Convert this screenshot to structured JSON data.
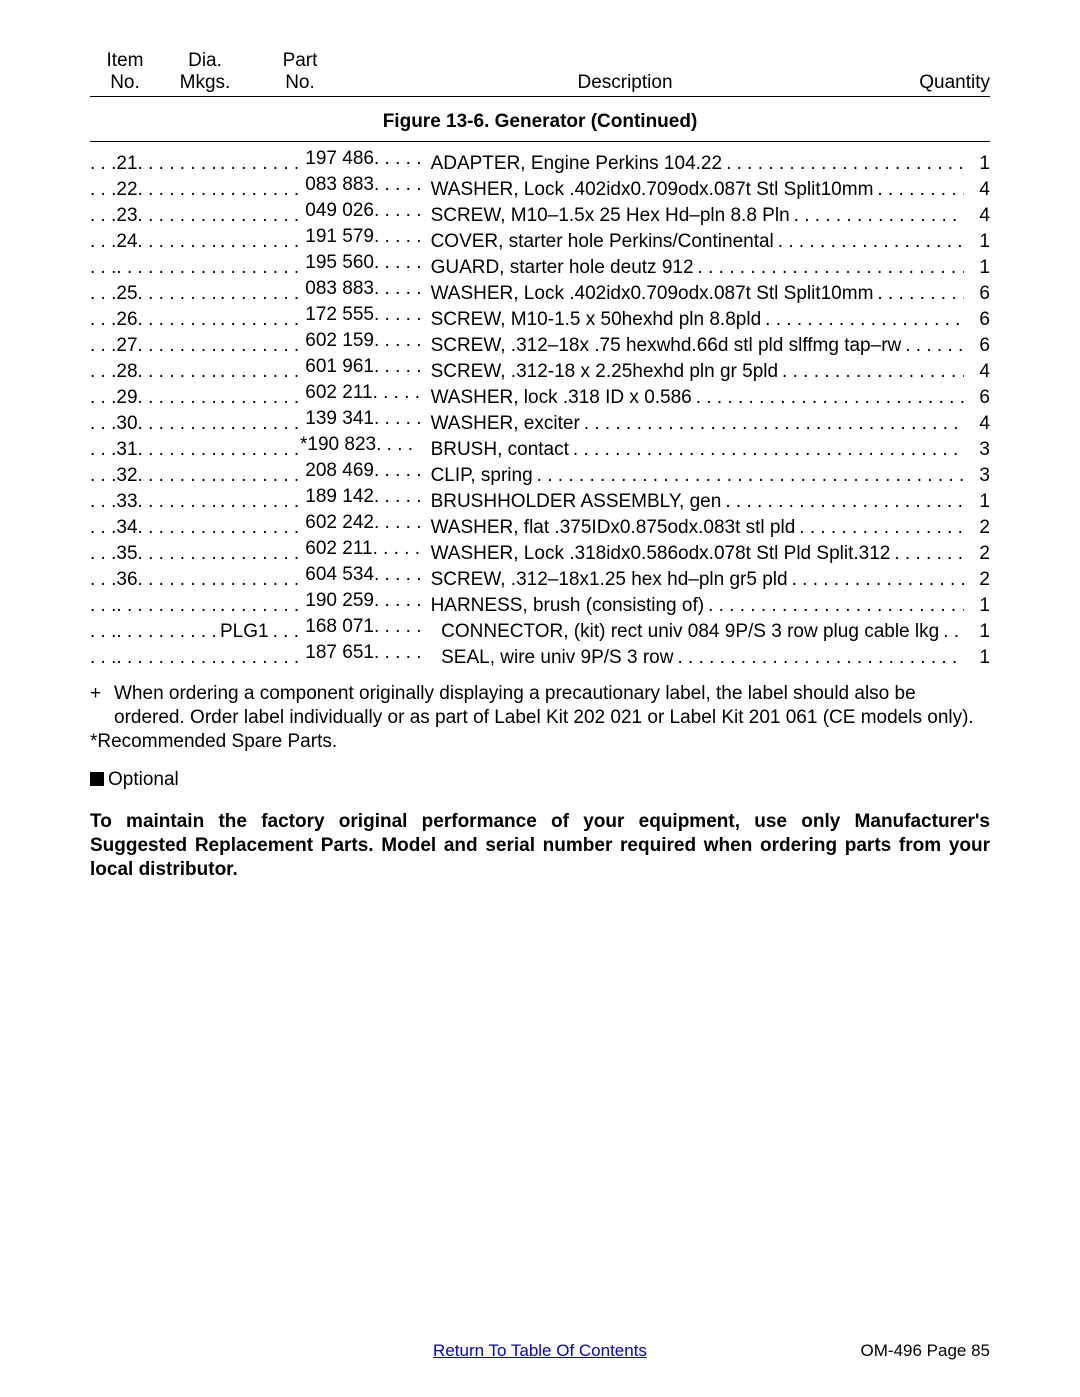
{
  "header": {
    "item_top": "Item",
    "item_bot": "No.",
    "dia_top": "Dia.",
    "dia_bot": "Mkgs.",
    "part_top": "Part",
    "part_bot": "No.",
    "desc": "Description",
    "qty": "Quantity"
  },
  "figure_title": "Figure 13-6. Generator (Continued)",
  "rows": [
    {
      "item": "21",
      "dia": "",
      "star": "",
      "part": "197 486",
      "indent": "",
      "desc": "ADAPTER, Engine Perkins 104.22",
      "qty": "1"
    },
    {
      "item": "22",
      "dia": "",
      "star": "",
      "part": "083 883",
      "indent": "",
      "desc": "WASHER, Lock .402idx0.709odx.087t Stl Split10mm",
      "qty": "4"
    },
    {
      "item": "23",
      "dia": "",
      "star": "",
      "part": "049 026",
      "indent": "",
      "desc": "SCREW, M10–1.5x 25 Hex Hd–pln 8.8 Pln",
      "qty": "4"
    },
    {
      "item": "24",
      "dia": "",
      "star": "",
      "part": "191 579",
      "indent": "",
      "desc": "COVER, starter hole Perkins/Continental",
      "qty": "1"
    },
    {
      "item": "",
      "dia": "",
      "star": "",
      "part": "195 560",
      "indent": "",
      "desc": "GUARD, starter hole deutz 912",
      "qty": "1"
    },
    {
      "item": "25",
      "dia": "",
      "star": "",
      "part": "083 883",
      "indent": "",
      "desc": "WASHER, Lock .402idx0.709odx.087t Stl Split10mm",
      "qty": "6"
    },
    {
      "item": "26",
      "dia": "",
      "star": "",
      "part": "172 555",
      "indent": "",
      "desc": "SCREW, M10-1.5 x 50hexhd pln 8.8pld",
      "qty": "6"
    },
    {
      "item": "27",
      "dia": "",
      "star": "",
      "part": "602 159",
      "indent": "",
      "desc": "SCREW, .312–18x .75 hexwhd.66d stl pld slffmg tap–rw",
      "qty": "6"
    },
    {
      "item": "28",
      "dia": "",
      "star": "",
      "part": "601 961",
      "indent": "",
      "desc": "SCREW, .312-18 x 2.25hexhd pln gr 5pld",
      "qty": "4"
    },
    {
      "item": "29",
      "dia": "",
      "star": "",
      "part": "602 211",
      "indent": "",
      "desc": "WASHER, lock .318 ID x 0.586",
      "qty": "6"
    },
    {
      "item": "30",
      "dia": "",
      "star": "",
      "part": "139 341",
      "indent": "",
      "desc": "WASHER, exciter",
      "qty": "4"
    },
    {
      "item": "31",
      "dia": "",
      "star": "*",
      "part": "190 823",
      "indent": "",
      "desc": "BRUSH, contact",
      "qty": "3"
    },
    {
      "item": "32",
      "dia": "",
      "star": "",
      "part": "208 469",
      "indent": "",
      "desc": "CLIP, spring",
      "qty": "3"
    },
    {
      "item": "33",
      "dia": "",
      "star": "",
      "part": "189 142",
      "indent": "",
      "desc": "BRUSHHOLDER ASSEMBLY, gen",
      "qty": "1"
    },
    {
      "item": "34",
      "dia": "",
      "star": "",
      "part": "602 242",
      "indent": "",
      "desc": "WASHER, flat .375IDx0.875odx.083t stl pld",
      "qty": "2"
    },
    {
      "item": "35",
      "dia": "",
      "star": "",
      "part": "602 211",
      "indent": "",
      "desc": "WASHER, Lock .318idx0.586odx.078t Stl Pld Split.312",
      "qty": "2"
    },
    {
      "item": "36",
      "dia": "",
      "star": "",
      "part": "604 534",
      "indent": "",
      "desc": "SCREW, .312–18x1.25 hex hd–pln gr5 pld",
      "qty": "2"
    },
    {
      "item": "",
      "dia": "",
      "star": "",
      "part": "190 259",
      "indent": "",
      "desc": "HARNESS, brush (consisting of)",
      "qty": "1"
    },
    {
      "item": "",
      "dia": "PLG1",
      "star": "",
      "part": "168 071",
      "indent": "  ",
      "desc": "CONNECTOR, (kit) rect univ 084 9P/S 3 row plug cable lkg",
      "qty": "1"
    },
    {
      "item": "",
      "dia": "",
      "star": "",
      "part": "187 651",
      "indent": "  ",
      "desc": "SEAL, wire univ 9P/S 3 row",
      "qty": "1"
    }
  ],
  "notes": {
    "plus": "When ordering a component originally displaying a precautionary label, the label should also be ordered. Order label individually or as part of Label Kit 202 021 or Label Kit 201 061 (CE models only).",
    "spare": "*Recommended Spare Parts.",
    "optional": "Optional",
    "bold": "To maintain the factory original performance of your equipment, use only Manufacturer's Suggested Replacement Parts. Model and serial number required when ordering parts from your local distributor."
  },
  "footer": {
    "toc": "Return To Table Of Contents",
    "page": "OM-496 Page 85"
  }
}
